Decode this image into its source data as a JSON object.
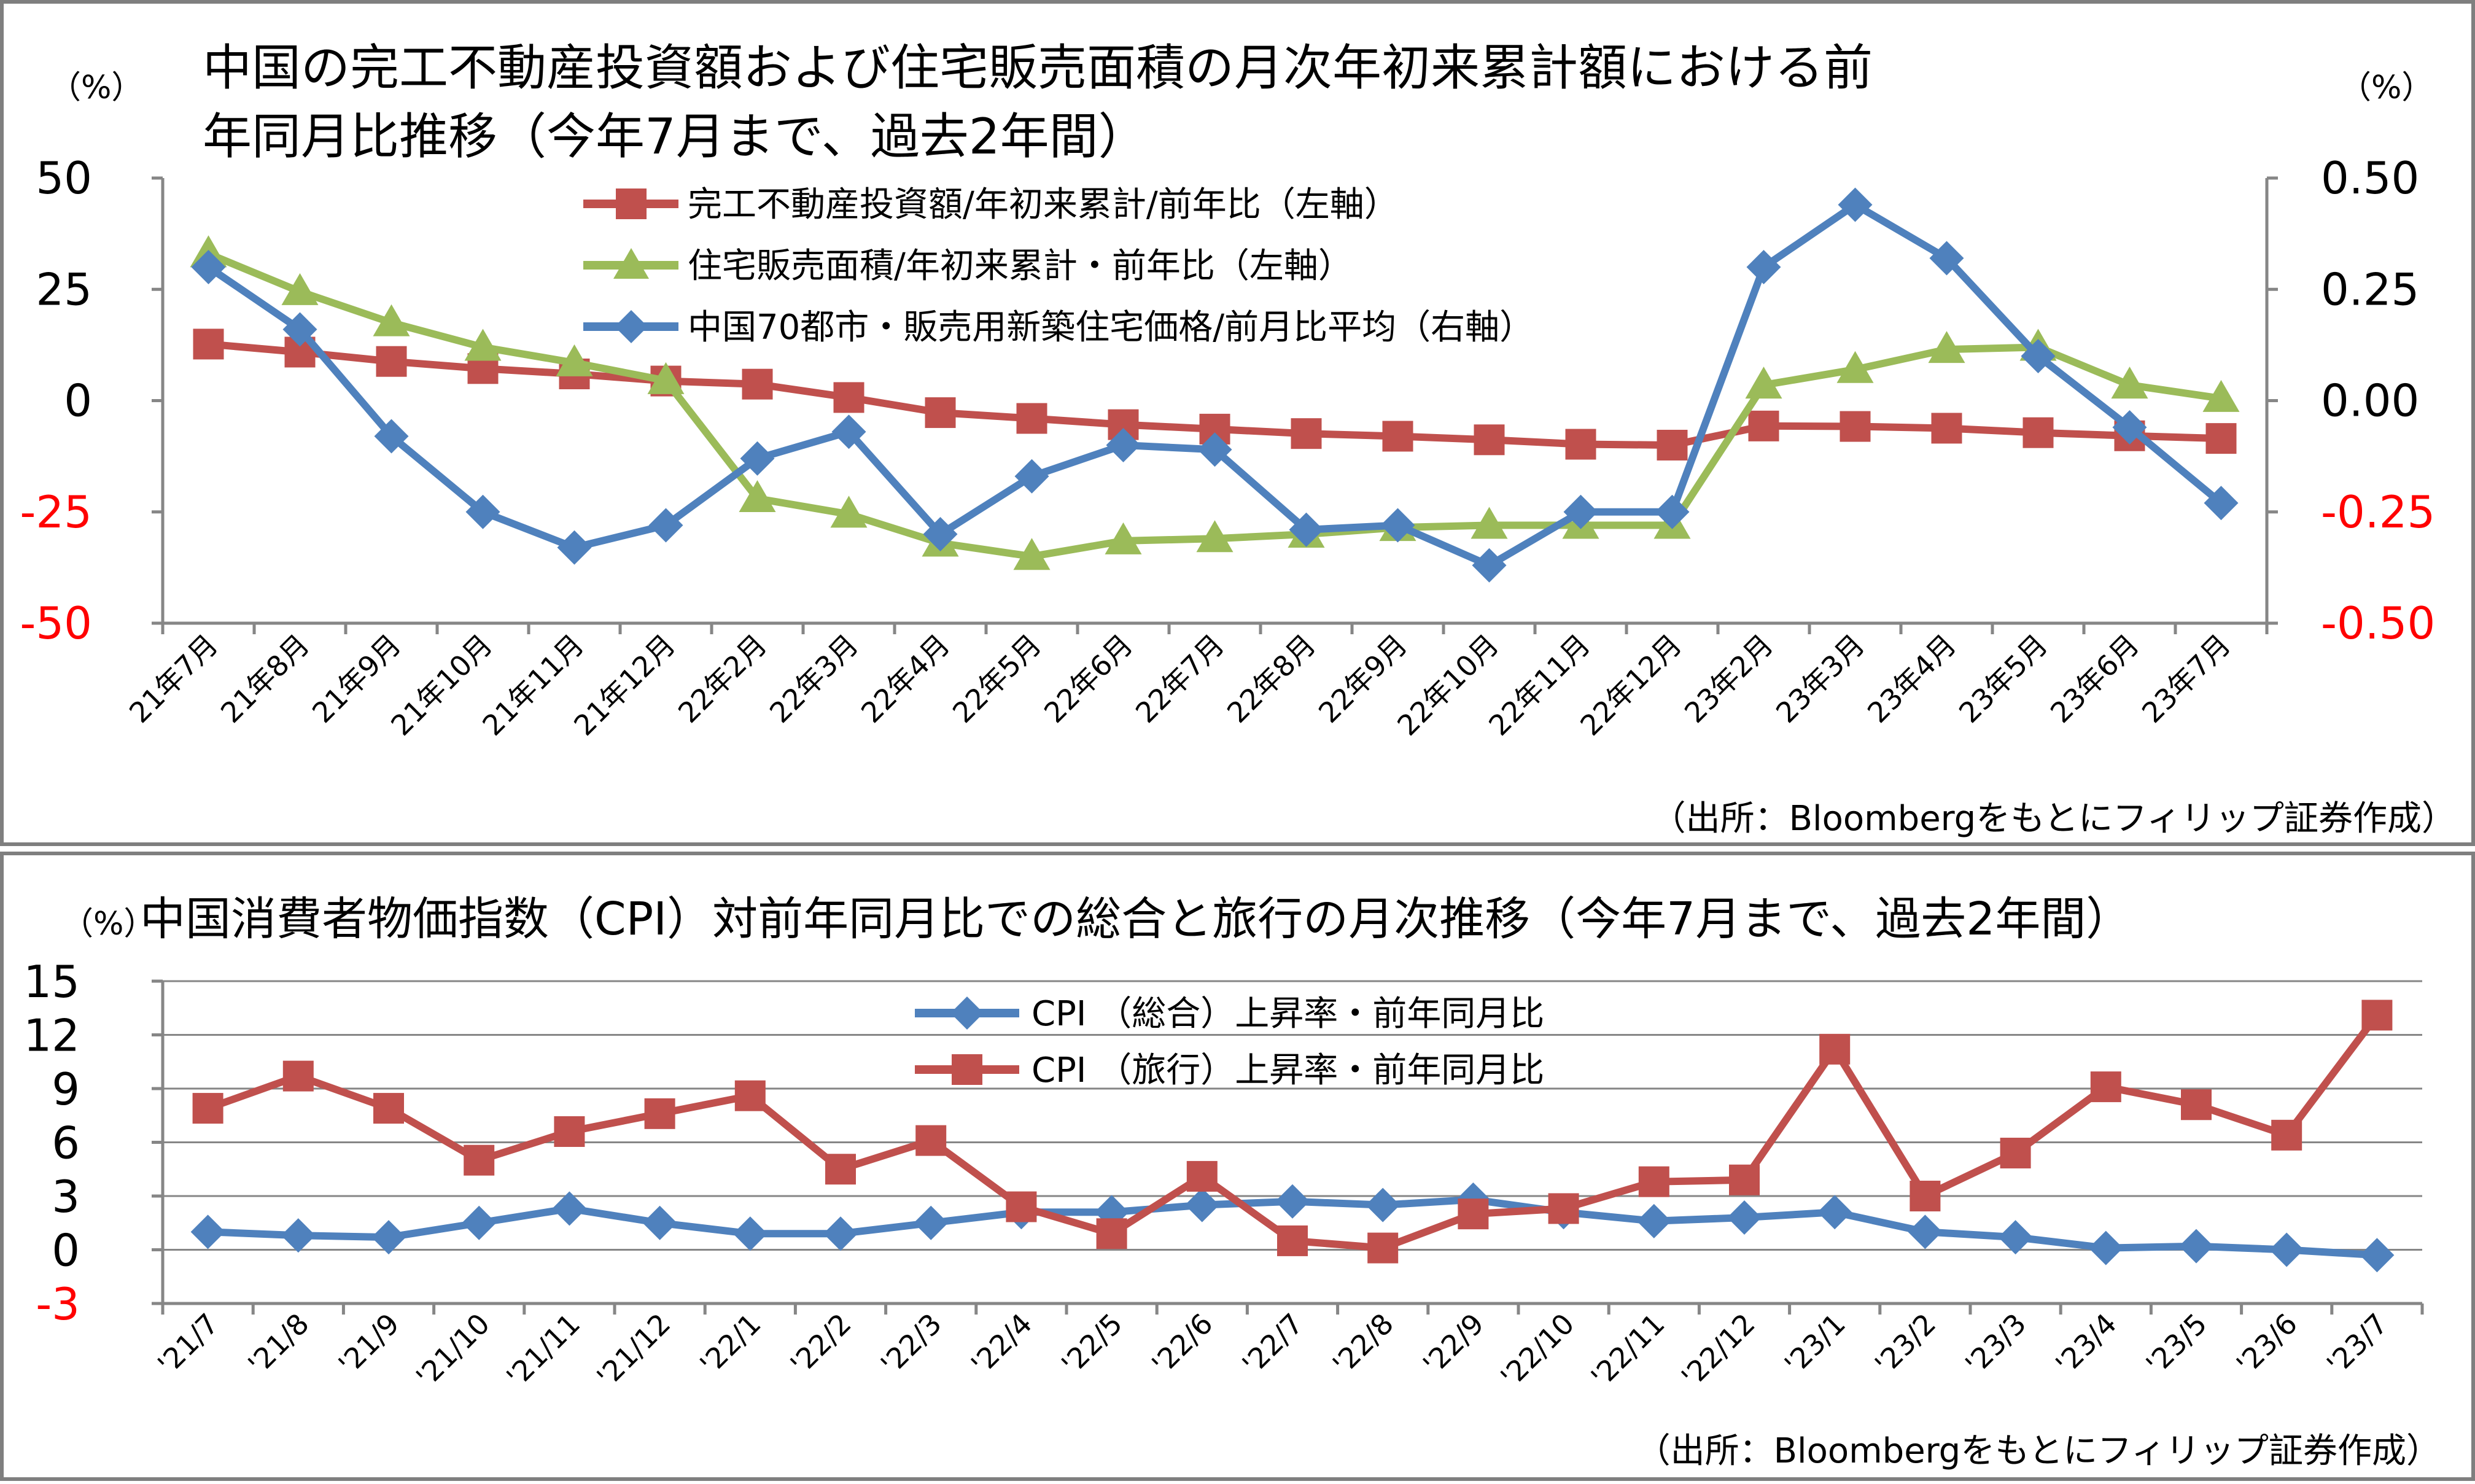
{
  "chart_data": [
    {
      "type": "line",
      "title": "中国の完工不動産投資額および住宅販売面積の月次年初来累計額における前年同月比推移（今年7月まで、過去2年間）",
      "title_lines": [
        "中国の完工不動産投資額および住宅販売面積の月次年初来累計額における前",
        "年同月比推移（今年7月まで、過去2年間）"
      ],
      "left_unit": "（%）",
      "right_unit": "（%）",
      "categories": [
        "21年7月",
        "21年8月",
        "21年9月",
        "21年10月",
        "21年11月",
        "21年12月",
        "22年2月",
        "22年3月",
        "22年4月",
        "22年5月",
        "22年6月",
        "22年7月",
        "22年8月",
        "22年9月",
        "22年10月",
        "22年11月",
        "22年12月",
        "23年2月",
        "23年3月",
        "23年4月",
        "23年5月",
        "23年6月",
        "23年7月"
      ],
      "ylim_left": [
        -50,
        50
      ],
      "yticks_left": [
        "50",
        "25",
        "0",
        "-25",
        "-50"
      ],
      "ylim_right": [
        -0.5,
        0.5
      ],
      "yticks_right": [
        "0.50",
        "0.25",
        "0.00",
        "-0.25",
        "-0.50"
      ],
      "grid": false,
      "legend_position": "top-center",
      "series": [
        {
          "name": "完工不動産投資額/年初来累計/前年比（左軸）",
          "axis": "left",
          "color": "#C0504D",
          "marker": "square",
          "values": [
            12.7,
            10.9,
            8.8,
            7.2,
            6.0,
            4.4,
            3.7,
            0.7,
            -2.7,
            -4.0,
            -5.4,
            -6.4,
            -7.4,
            -8.0,
            -8.8,
            -9.8,
            -10.0,
            -5.7,
            -5.8,
            -6.2,
            -7.2,
            -7.9,
            -8.5
          ]
        },
        {
          "name": "住宅販売面積/年初来累計・前年比（左軸）",
          "axis": "left",
          "color": "#9BBB59",
          "marker": "triangle",
          "values": [
            33.0,
            24.5,
            17.5,
            12.0,
            8.5,
            4.5,
            -22.0,
            -25.5,
            -32.0,
            -35.0,
            -31.5,
            -31.0,
            -30.0,
            -28.5,
            -28.0,
            -28.0,
            -28.0,
            3.5,
            7.0,
            11.5,
            12.0,
            3.5,
            0.5
          ]
        },
        {
          "name": "中国70都市・販売用新築住宅価格/前月比平均（右軸）",
          "axis": "right",
          "color": "#4F81BD",
          "marker": "diamond",
          "values": [
            0.3,
            0.16,
            -0.08,
            -0.25,
            -0.33,
            -0.28,
            -0.13,
            -0.07,
            -0.3,
            -0.17,
            -0.1,
            -0.11,
            -0.29,
            -0.28,
            -0.37,
            -0.25,
            -0.25,
            0.3,
            0.44,
            0.32,
            0.1,
            -0.06,
            -0.23
          ]
        }
      ],
      "source": "（出所：Bloombergをもとにフィリップ証券作成）"
    },
    {
      "type": "line",
      "title": "中国消費者物価指数（CPI）対前年同月比での総合と旅行の月次推移（今年7月まで、過去2年間）",
      "left_unit": "（%）",
      "categories": [
        "'21/7",
        "'21/8",
        "'21/9",
        "'21/10",
        "'21/11",
        "'21/12",
        "'22/1",
        "'22/2",
        "'22/3",
        "'22/4",
        "'22/5",
        "'22/6",
        "'22/7",
        "'22/8",
        "'22/9",
        "'22/10",
        "'22/11",
        "'22/12",
        "'23/1",
        "'23/2",
        "'23/3",
        "'23/4",
        "'23/5",
        "'23/6",
        "'23/7"
      ],
      "ylim": [
        -3,
        15
      ],
      "yticks": [
        "15",
        "12",
        "9",
        "6",
        "3",
        "0",
        "-3"
      ],
      "grid": true,
      "legend_position": "top-center",
      "series": [
        {
          "name": "CPI （総合）上昇率・前年同月比",
          "color": "#4F81BD",
          "marker": "diamond",
          "values": [
            1.0,
            0.8,
            0.7,
            1.5,
            2.3,
            1.5,
            0.9,
            0.9,
            1.5,
            2.1,
            2.1,
            2.5,
            2.7,
            2.5,
            2.8,
            2.1,
            1.6,
            1.8,
            2.1,
            1.0,
            0.7,
            0.1,
            0.2,
            0.0,
            -0.3
          ]
        },
        {
          "name": "CPI （旅行）上昇率・前年同月比",
          "color": "#C0504D",
          "marker": "square",
          "values": [
            7.9,
            9.7,
            7.9,
            5.0,
            6.6,
            7.6,
            8.6,
            4.5,
            6.1,
            2.4,
            0.9,
            4.1,
            0.5,
            0.1,
            2.0,
            2.3,
            3.8,
            3.9,
            11.2,
            3.0,
            5.4,
            9.1,
            8.1,
            6.4,
            13.1
          ]
        }
      ],
      "source": "（出所：Bloombergをもとにフィリップ証券作成）"
    }
  ]
}
